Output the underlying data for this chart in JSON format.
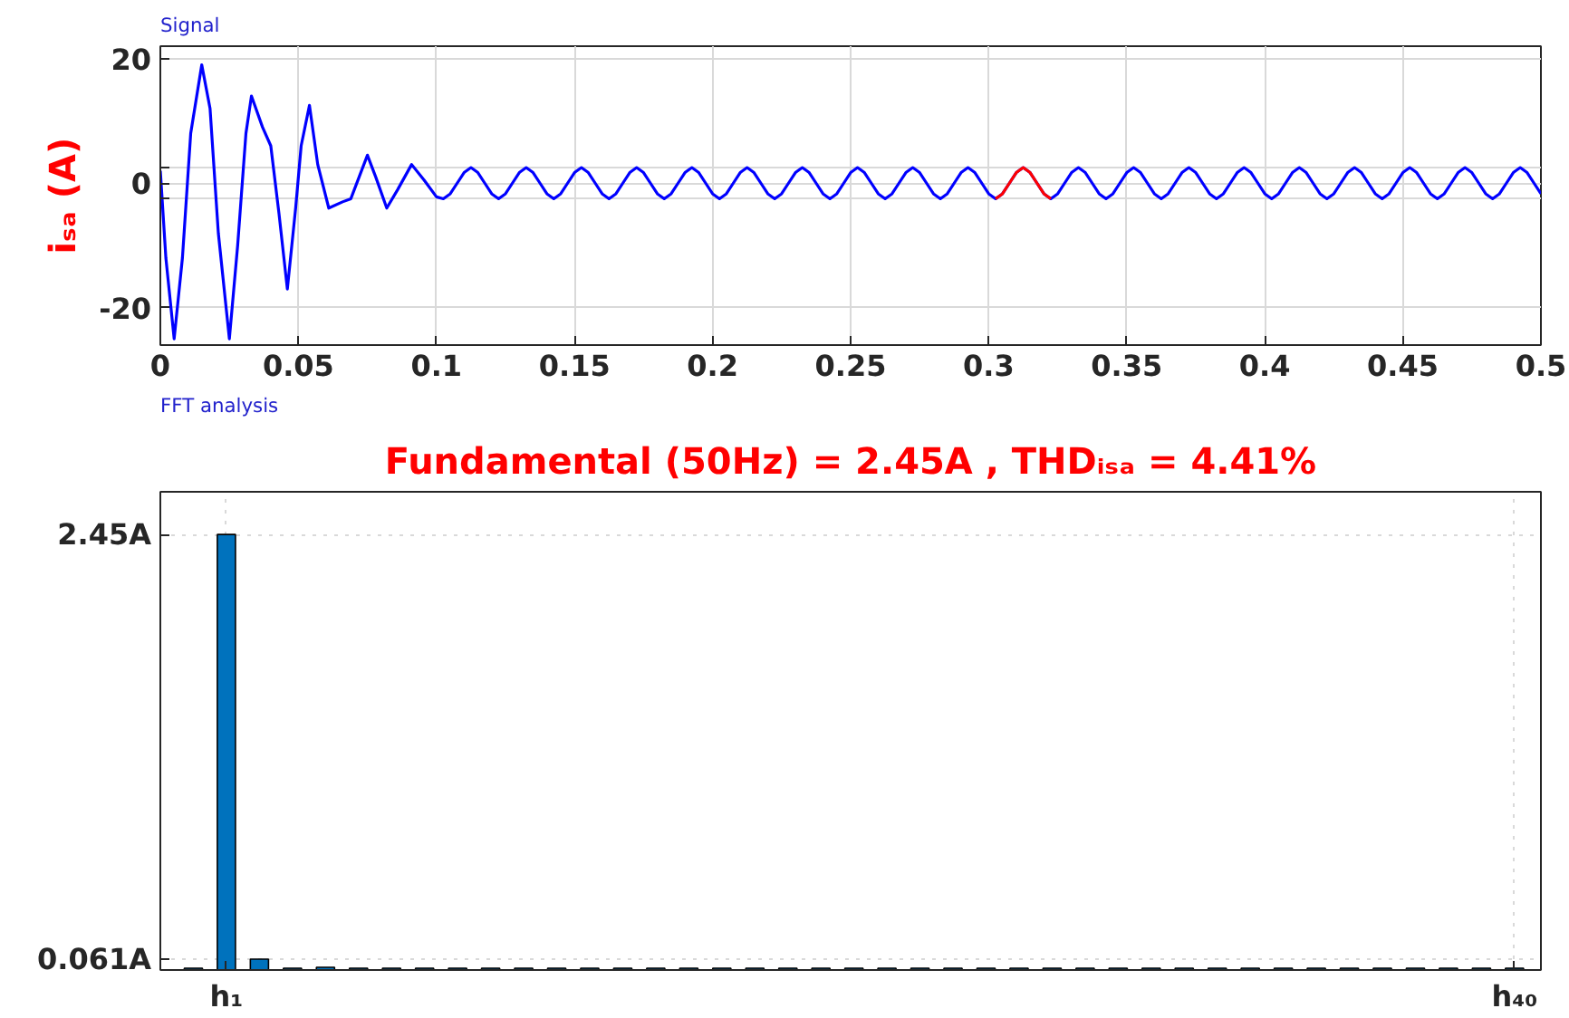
{
  "chart_data": [
    {
      "type": "line",
      "ylabel": "iₛₐ (A)",
      "annotations": [
        "Signal"
      ],
      "xlim": [
        0,
        0.5
      ],
      "ylim": [
        -26,
        22
      ],
      "xticks": [
        0,
        0.05,
        0.1,
        0.15,
        0.2,
        0.25,
        0.3,
        0.35,
        0.4,
        0.45,
        0.5
      ],
      "yticks": [
        -20,
        {
          "value": -2.5,
          "label": null
        },
        0,
        {
          "value": 2.5,
          "label": null
        },
        20
      ],
      "grid": true,
      "series": [
        {
          "color": "#0000ff",
          "x": [
            0,
            0.002,
            0.005,
            0.008,
            0.011,
            0.015,
            0.018,
            0.021,
            0.025,
            0.028,
            0.031,
            0.033,
            0.037,
            0.04,
            0.043,
            0.046,
            0.049,
            0.051,
            0.054,
            0.057,
            0.061,
            0.066,
            0.069,
            0.072,
            0.075,
            0.078,
            0.082,
            0.086,
            0.091,
            0.0955,
            0.1,
            0.1025,
            0.105,
            0.1075,
            0.11,
            0.1125,
            0.115,
            0.1175,
            0.12,
            0.1225,
            0.125,
            0.1275,
            0.13,
            0.1325,
            0.135,
            0.1375,
            0.14,
            0.1425,
            0.145,
            0.1475,
            0.15,
            0.1525,
            0.155,
            0.1575,
            0.16,
            0.1625,
            0.165,
            0.1675,
            0.17,
            0.1725,
            0.175,
            0.1775,
            0.18,
            0.1825,
            0.185,
            0.1875,
            0.19,
            0.1925,
            0.195,
            0.1975,
            0.2,
            0.2025,
            0.205,
            0.2075,
            0.21,
            0.2125,
            0.215,
            0.2175,
            0.22,
            0.2225,
            0.225,
            0.2275,
            0.23,
            0.2325,
            0.235,
            0.2375,
            0.24,
            0.2425,
            0.245,
            0.2475,
            0.25,
            0.2525,
            0.255,
            0.2575,
            0.26,
            0.2625,
            0.265,
            0.2675,
            0.27,
            0.2725,
            0.275,
            0.2775,
            0.28,
            0.2825,
            0.285,
            0.2875,
            0.29,
            0.2925,
            0.295,
            0.2975,
            0.3,
            0.3025,
            0.305,
            0.3075,
            0.31,
            0.3125,
            0.315,
            0.3175,
            0.32,
            0.3225,
            0.325,
            0.3275,
            0.33,
            0.3325,
            0.335,
            0.3375,
            0.34,
            0.3425,
            0.345,
            0.3475,
            0.35,
            0.3525,
            0.355,
            0.3575,
            0.36,
            0.3625,
            0.365,
            0.3675,
            0.37,
            0.3725,
            0.375,
            0.3775,
            0.38,
            0.3825,
            0.385,
            0.3875,
            0.39,
            0.3925,
            0.395,
            0.3975,
            0.4,
            0.4025,
            0.405,
            0.4075,
            0.41,
            0.4125,
            0.415,
            0.4175,
            0.42,
            0.4225,
            0.425,
            0.4275,
            0.43,
            0.4325,
            0.435,
            0.4375,
            0.44,
            0.4425,
            0.445,
            0.4475,
            0.45,
            0.4525,
            0.455,
            0.4575,
            0.46,
            0.4625,
            0.465,
            0.4675,
            0.47,
            0.4725,
            0.475,
            0.4775,
            0.48,
            0.4825,
            0.485,
            0.4875,
            0.49,
            0.4925,
            0.495,
            0.4975,
            0.5
          ],
          "values": [
            2,
            -12,
            -25,
            -12,
            8,
            19,
            12,
            -8,
            -25,
            -10,
            8,
            14,
            9,
            6,
            -5,
            -17,
            -4,
            6,
            12.5,
            3,
            -4,
            -3,
            -2.5,
            1,
            4.5,
            1,
            -4,
            -1,
            3,
            0.5,
            -2.2,
            -2.5,
            -1.7,
            0,
            1.7,
            2.5,
            1.7,
            0,
            -1.7,
            -2.5,
            -1.7,
            0,
            1.7,
            2.5,
            1.7,
            0,
            -1.7,
            -2.5,
            -1.7,
            0,
            1.7,
            2.5,
            1.7,
            0,
            -1.7,
            -2.5,
            -1.7,
            0,
            1.7,
            2.5,
            1.7,
            0,
            -1.7,
            -2.5,
            -1.7,
            0,
            1.7,
            2.5,
            1.7,
            0,
            -1.7,
            -2.5,
            -1.7,
            0,
            1.7,
            2.5,
            1.7,
            0,
            -1.7,
            -2.5,
            -1.7,
            0,
            1.7,
            2.5,
            1.7,
            0,
            -1.7,
            -2.5,
            -1.7,
            0,
            1.7,
            2.5,
            1.7,
            0,
            -1.7,
            -2.5,
            -1.7,
            0,
            1.7,
            2.5,
            1.7,
            0,
            -1.7,
            -2.5,
            -1.7,
            0,
            1.7,
            2.5,
            1.7,
            0,
            -1.7,
            -2.5,
            -1.7,
            0,
            1.7,
            2.5,
            1.7,
            0,
            -1.7,
            -2.5,
            -1.7,
            0,
            1.7,
            2.5,
            1.7,
            0,
            -1.7,
            -2.5,
            -1.7,
            0,
            1.7,
            2.5,
            1.7,
            0,
            -1.7,
            -2.5,
            -1.7,
            0,
            1.7,
            2.5,
            1.7,
            0,
            -1.7,
            -2.5,
            -1.7,
            0,
            1.7,
            2.5,
            1.7,
            0,
            -1.7,
            -2.5,
            -1.7,
            0,
            1.7,
            2.5,
            1.7,
            0,
            -1.7,
            -2.5,
            -1.7,
            0,
            1.7,
            2.5,
            1.7,
            0,
            -1.7,
            -2.5,
            -1.7,
            0,
            1.7,
            2.5,
            1.7,
            0,
            -1.7,
            -2.5,
            -1.7,
            0,
            1.7,
            2.5,
            1.7,
            0,
            -1.7,
            -2.5,
            -1.7,
            0,
            1.7,
            2.5,
            1.7,
            0,
            -1.7
          ]
        },
        {
          "color": "#ff0000",
          "x": [
            0.3025,
            0.305,
            0.3075,
            0.31,
            0.3125,
            0.315,
            0.3175,
            0.32,
            0.3225
          ],
          "values": [
            -2.5,
            -1.7,
            0,
            1.7,
            2.5,
            1.7,
            0,
            -1.7,
            -2.5
          ]
        }
      ]
    },
    {
      "type": "bar",
      "title": "Fundamental (50Hz) = 2.45A , THDᵢₛₐ = 4.41%",
      "annotations": [
        "FFT analysis"
      ],
      "categories": [
        null,
        "h₁",
        null,
        null,
        null,
        null,
        null,
        null,
        null,
        null,
        null,
        null,
        null,
        null,
        null,
        null,
        null,
        null,
        null,
        null,
        null,
        null,
        null,
        null,
        null,
        null,
        null,
        null,
        null,
        null,
        null,
        null,
        null,
        null,
        null,
        null,
        null,
        null,
        null,
        null,
        "h₄₀"
      ],
      "values": [
        0.01,
        2.45,
        0.061,
        0.01,
        0.015,
        0.01,
        0.01,
        0.01,
        0.01,
        0.01,
        0.01,
        0.01,
        0.01,
        0.01,
        0.01,
        0.01,
        0.01,
        0.01,
        0.01,
        0.01,
        0.01,
        0.01,
        0.01,
        0.01,
        0.01,
        0.01,
        0.01,
        0.01,
        0.01,
        0.01,
        0.01,
        0.01,
        0.01,
        0.01,
        0.01,
        0.01,
        0.01,
        0.01,
        0.01,
        0.01,
        0.01
      ],
      "color": "#0072bd",
      "ylim": [
        0,
        2.69
      ],
      "yticks": [
        {
          "value": 0.061,
          "label": "0.061A"
        },
        {
          "value": 2.45,
          "label": "2.45A"
        }
      ],
      "grid": true
    }
  ]
}
